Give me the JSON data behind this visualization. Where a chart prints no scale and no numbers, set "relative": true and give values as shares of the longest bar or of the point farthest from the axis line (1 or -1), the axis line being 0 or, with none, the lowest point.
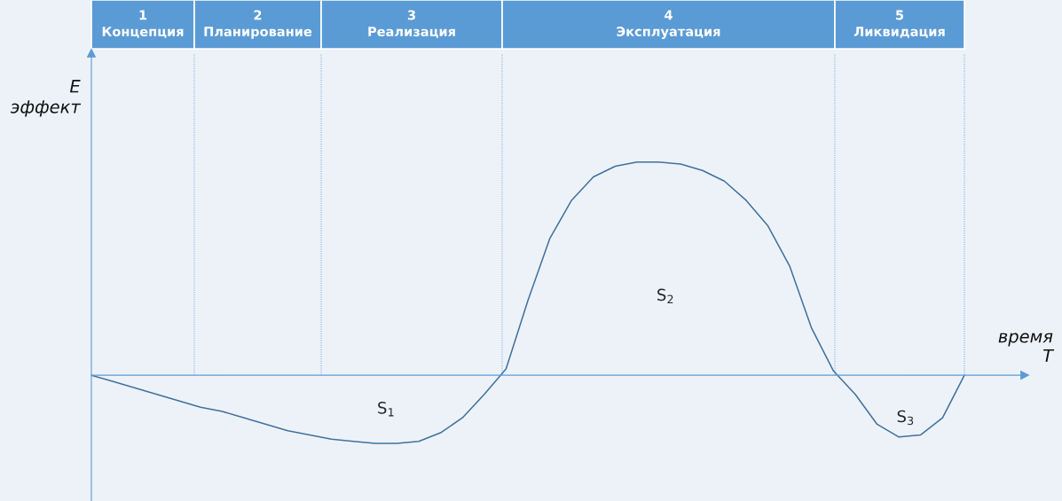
{
  "chart_data": {
    "type": "line",
    "relative": true,
    "grid": "x",
    "xlabel": "время\nT",
    "ylabel": "E\nэффект",
    "categories": [
      null,
      null,
      null,
      null,
      null,
      null,
      null,
      null,
      null,
      null,
      null,
      null,
      null,
      null,
      null,
      null,
      null,
      null,
      null,
      null,
      null,
      null,
      null,
      null,
      null,
      null,
      null,
      null,
      null,
      null,
      null,
      null,
      null,
      null,
      null,
      null,
      null,
      null,
      null,
      null,
      null
    ],
    "series": [
      {
        "color": "#41719c",
        "values": [
          0,
          -0.03,
          -0.06,
          -0.09,
          -0.12,
          -0.15,
          -0.17,
          -0.2,
          -0.23,
          -0.26,
          -0.28,
          -0.3,
          -0.31,
          -0.32,
          -0.32,
          -0.31,
          -0.27,
          -0.2,
          -0.09,
          0.03,
          0.35,
          0.64,
          0.82,
          0.93,
          0.98,
          1.0,
          1.0,
          0.99,
          0.96,
          0.91,
          0.82,
          0.7,
          0.51,
          0.22,
          0.02,
          -0.09,
          -0.23,
          -0.29,
          -0.28,
          -0.2,
          0
        ]
      }
    ],
    "ref_lines": [
      {
        "axis": "y",
        "value": 0,
        "color": "#5b9bd5"
      }
    ],
    "annotations": [
      "1\nКонцепция",
      "2\nПланирование",
      "3\nРеализация",
      "4\nЭксплуатация",
      "5\nЛиквидация",
      "S$_{1}$",
      "S$_{2}$",
      "S$_{3}$"
    ]
  }
}
